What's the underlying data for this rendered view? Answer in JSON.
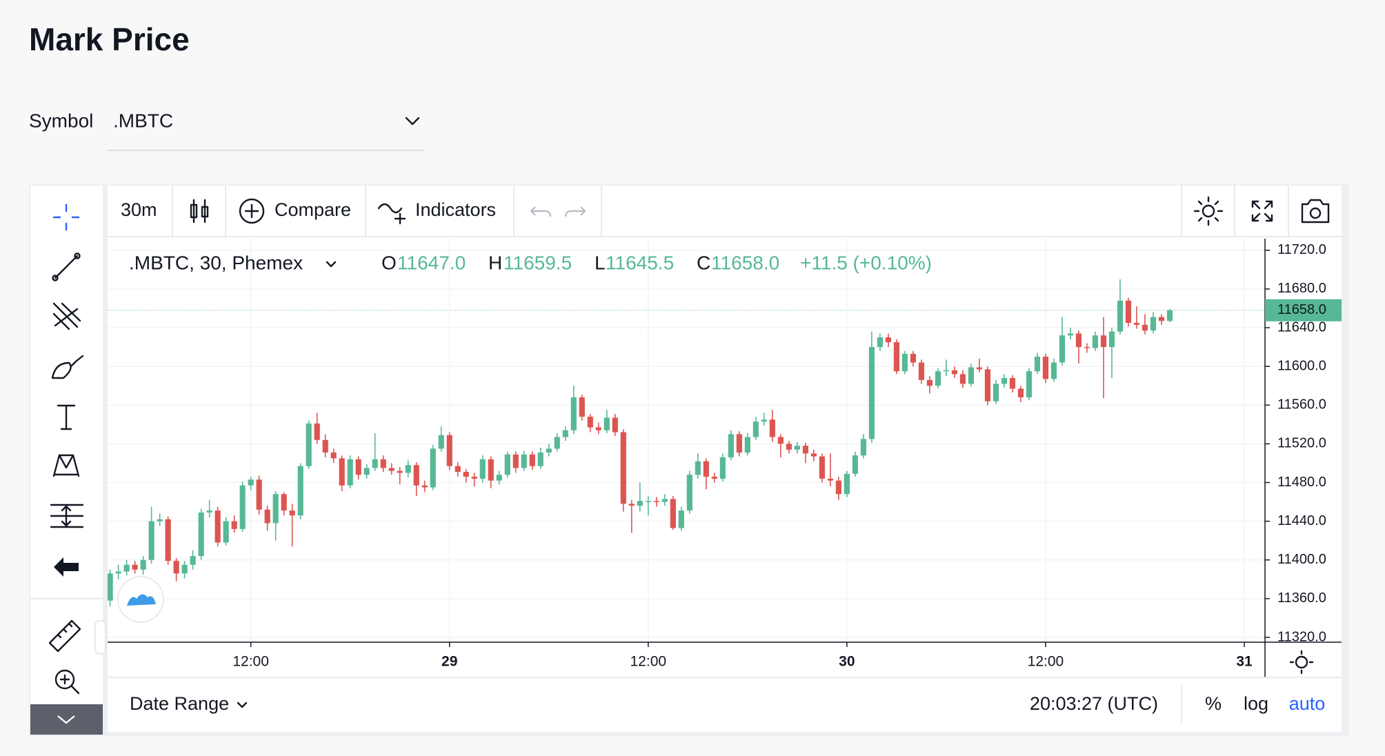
{
  "header": {
    "title": "Mark Price",
    "symbol_label": "Symbol",
    "symbol": ".MBTC"
  },
  "toolbar": {
    "interval": "30m",
    "compare": "Compare",
    "indicators": "Indicators"
  },
  "chart_data": {
    "type": "candlestick",
    "legend": {
      "symbol": ".MBTC, 30, Phemex",
      "o_label": "O",
      "o": "11647.0",
      "h_label": "H",
      "h": "11659.5",
      "l_label": "L",
      "l": "11645.5",
      "c_label": "C",
      "c": "11658.0",
      "change": "+11.5 (+0.10%)"
    },
    "open": [
      11358,
      11386,
      11388,
      11395,
      11390,
      11400,
      11440,
      11442,
      11399,
      11386,
      11395,
      11404,
      11449,
      11451,
      11418,
      11440,
      11432,
      11477,
      11483,
      11452,
      11438,
      11468,
      11451,
      11446,
      11497,
      11541,
      11524,
      11511,
      11505,
      11477,
      11504,
      11488,
      11495,
      11504,
      11495,
      11492,
      11490,
      11498,
      11477,
      11475,
      11515,
      11529,
      11497,
      11491,
      11486,
      11484,
      11504,
      11482,
      11488,
      11509,
      11495,
      11509,
      11497,
      11511,
      11515,
      11527,
      11534,
      11568,
      11548,
      11537,
      11534,
      11547,
      11532,
      11458,
      11456,
      11461,
      11461,
      11460,
      11463,
      11433,
      11451,
      11488,
      11502,
      11486,
      11484,
      11506,
      11530,
      11511,
      11527,
      11543,
      11545,
      11527,
      11520,
      11514,
      11518,
      11510,
      11507,
      11484,
      11482,
      11468,
      11489,
      11508,
      11525,
      11620,
      11630,
      11625,
      11595,
      11613,
      11604,
      11586,
      11580,
      11595,
      11596,
      11592,
      11582,
      11599,
      11597,
      11564,
      11582,
      11588,
      11577,
      11568,
      11595,
      11610,
      11587,
      11604,
      11632,
      11634,
      11620,
      11619,
      11632,
      11620,
      11636,
      11668,
      11645,
      11643,
      11637,
      11651,
      11647
    ],
    "high": [
      11390,
      11395,
      11400,
      11399,
      11404,
      11455,
      11448,
      11445,
      11402,
      11399,
      11410,
      11453,
      11462,
      11455,
      11444,
      11446,
      11481,
      11486,
      11487,
      11456,
      11471,
      11470,
      11458,
      11500,
      11544,
      11552,
      11530,
      11515,
      11508,
      11508,
      11507,
      11499,
      11531,
      11508,
      11500,
      11496,
      11503,
      11501,
      11482,
      11519,
      11538,
      11532,
      11501,
      11494,
      11490,
      11508,
      11507,
      11492,
      11512,
      11512,
      11513,
      11512,
      11516,
      11520,
      11531,
      11538,
      11580,
      11571,
      11551,
      11542,
      11555,
      11551,
      11535,
      11462,
      11480,
      11466,
      11465,
      11468,
      11466,
      11455,
      11492,
      11510,
      11505,
      11490,
      11510,
      11534,
      11533,
      11531,
      11548,
      11552,
      11555,
      11530,
      11523,
      11522,
      11521,
      11514,
      11510,
      11510,
      11486,
      11492,
      11512,
      11530,
      11636,
      11634,
      11634,
      11628,
      11616,
      11616,
      11607,
      11590,
      11598,
      11607,
      11600,
      11596,
      11603,
      11608,
      11600,
      11586,
      11592,
      11591,
      11580,
      11598,
      11614,
      11613,
      11608,
      11651,
      11640,
      11637,
      11624,
      11636,
      11651,
      11640,
      11690,
      11671,
      11662,
      11654,
      11656,
      11654,
      11659.5
    ],
    "low": [
      11352,
      11380,
      11384,
      11386,
      11385,
      11396,
      11435,
      11395,
      11378,
      11381,
      11390,
      11400,
      11444,
      11414,
      11415,
      11428,
      11429,
      11472,
      11447,
      11430,
      11420,
      11446,
      11414,
      11442,
      11494,
      11520,
      11506,
      11500,
      11471,
      11474,
      11483,
      11484,
      11492,
      11491,
      11488,
      11478,
      11485,
      11466,
      11470,
      11472,
      11512,
      11493,
      11486,
      11480,
      11476,
      11480,
      11474,
      11478,
      11485,
      11490,
      11492,
      11493,
      11494,
      11507,
      11512,
      11523,
      11530,
      11544,
      11532,
      11530,
      11531,
      11528,
      11450,
      11428,
      11450,
      11446,
      11455,
      11456,
      11431,
      11430,
      11448,
      11484,
      11473,
      11480,
      11481,
      11503,
      11507,
      11508,
      11524,
      11539,
      11522,
      11506,
      11510,
      11510,
      11500,
      11502,
      11480,
      11476,
      11462,
      11465,
      11486,
      11505,
      11521,
      11616,
      11620,
      11592,
      11592,
      11600,
      11582,
      11572,
      11577,
      11590,
      11588,
      11578,
      11579,
      11594,
      11560,
      11561,
      11578,
      11573,
      11563,
      11565,
      11592,
      11583,
      11584,
      11601,
      11628,
      11603,
      11614,
      11616,
      11567,
      11588,
      11633,
      11641,
      11639,
      11633,
      11634,
      11643,
      11645.5
    ],
    "close": [
      11386,
      11388,
      11395,
      11390,
      11400,
      11440,
      11442,
      11399,
      11386,
      11395,
      11404,
      11449,
      11451,
      11418,
      11440,
      11432,
      11477,
      11483,
      11452,
      11438,
      11468,
      11451,
      11446,
      11497,
      11541,
      11524,
      11511,
      11505,
      11477,
      11504,
      11488,
      11495,
      11504,
      11495,
      11492,
      11490,
      11498,
      11477,
      11475,
      11515,
      11529,
      11497,
      11491,
      11486,
      11484,
      11504,
      11482,
      11488,
      11509,
      11495,
      11509,
      11497,
      11511,
      11515,
      11527,
      11534,
      11568,
      11548,
      11537,
      11534,
      11547,
      11532,
      11458,
      11456,
      11461,
      11461,
      11460,
      11463,
      11433,
      11451,
      11488,
      11502,
      11486,
      11484,
      11506,
      11530,
      11511,
      11527,
      11543,
      11545,
      11527,
      11520,
      11514,
      11518,
      11510,
      11507,
      11484,
      11482,
      11468,
      11489,
      11508,
      11525,
      11620,
      11630,
      11625,
      11595,
      11613,
      11604,
      11586,
      11580,
      11595,
      11596,
      11592,
      11582,
      11599,
      11597,
      11564,
      11582,
      11588,
      11577,
      11568,
      11595,
      11610,
      11587,
      11604,
      11632,
      11634,
      11620,
      11619,
      11632,
      11620,
      11636,
      11668,
      11645,
      11643,
      11637,
      11651,
      11647,
      11658
    ],
    "xlim": [
      -0.3,
      139.5
    ],
    "xticks": [
      {
        "value": 17,
        "label": "12:00"
      },
      {
        "value": 41,
        "label": "29"
      },
      {
        "value": 65,
        "label": "12:00"
      },
      {
        "value": 89,
        "label": "30"
      },
      {
        "value": 113,
        "label": "12:00"
      },
      {
        "value": 137,
        "label": "31"
      }
    ],
    "ylim": [
      11315,
      11732
    ],
    "yticks": [
      {
        "value": 11320,
        "label": "11320.0"
      },
      {
        "value": 11360,
        "label": "11360.0"
      },
      {
        "value": 11400,
        "label": "11400.0"
      },
      {
        "value": 11440,
        "label": "11440.0"
      },
      {
        "value": 11480,
        "label": "11480.0"
      },
      {
        "value": 11520,
        "label": "11520.0"
      },
      {
        "value": 11560,
        "label": "11560.0"
      },
      {
        "value": 11600,
        "label": "11600.0"
      },
      {
        "value": 11640,
        "label": "11640.0"
      },
      {
        "value": 11680,
        "label": "11680.0"
      },
      {
        "value": 11720,
        "label": "11720.0"
      }
    ],
    "grid": true,
    "up_color": "#56b894",
    "down_color": "#dc5550",
    "last_price": 11658,
    "last_price_label": "11658.0"
  },
  "footer": {
    "date_range": "Date Range",
    "clock": "20:03:27 (UTC)",
    "percent": "%",
    "log": "log",
    "auto": "auto"
  }
}
